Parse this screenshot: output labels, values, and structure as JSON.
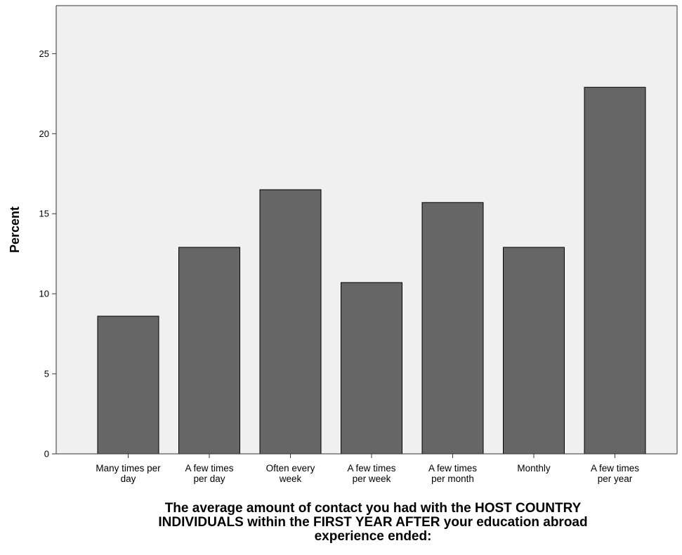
{
  "chart_data": {
    "type": "bar",
    "categories": [
      [
        "Many times per",
        "day"
      ],
      [
        "A few times",
        "per day"
      ],
      [
        "Often every",
        "week"
      ],
      [
        "A few times",
        "per week"
      ],
      [
        "A few times",
        "per month"
      ],
      [
        "Monthly"
      ],
      [
        "A few times",
        "per year"
      ]
    ],
    "values": [
      8.6,
      12.9,
      16.5,
      10.7,
      15.7,
      12.9,
      22.9
    ],
    "ylabel": "Percent",
    "xlabel": [
      "The average amount of contact you had with the HOST COUNTRY",
      "INDIVIDUALS within the FIRST YEAR AFTER your education abroad",
      "experience ended:"
    ],
    "ylim": [
      0,
      28
    ],
    "yticks": [
      0,
      5,
      10,
      15,
      20,
      25
    ],
    "grid": false,
    "colors": {
      "plot_background": "#f0f0f0",
      "bar_fill": "#666666",
      "bar_stroke": "#000000",
      "axis": "#333333"
    }
  }
}
